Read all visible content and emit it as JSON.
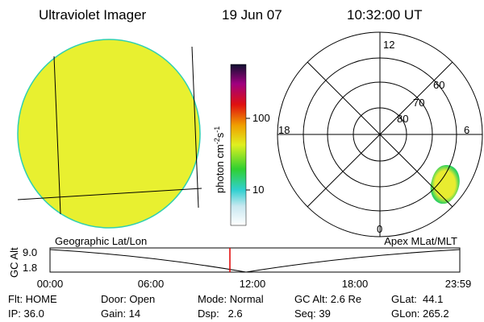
{
  "header": {
    "title": "Ultraviolet Imager",
    "date": "19 Jun 07",
    "time": "10:32:00 UT"
  },
  "colorbar": {
    "label_base": "photon cm",
    "label_exp1": "-2",
    "label_mid": "s",
    "label_exp2": "-1",
    "ticks": [
      "100",
      "10"
    ]
  },
  "polar": {
    "mlt": {
      "top": "12",
      "left": "18",
      "right": "6",
      "bottom": "0"
    },
    "lat": [
      "60",
      "70",
      "80"
    ]
  },
  "orbit": {
    "y_label": "GC Alt",
    "y_ticks": [
      "9.0",
      "1.8"
    ],
    "left_label": "Geographic Lat/Lon",
    "right_label": "Apex MLat/MLT",
    "x_ticks": [
      "00:00",
      "06:00",
      "12:00",
      "18:00",
      "23:59"
    ]
  },
  "status": {
    "rows": [
      [
        "Flt: HOME",
        "Door: Open",
        "Mode: Normal",
        "GC Alt: 2.6 Re",
        "GLat:  44.1"
      ],
      [
        "IP: 36.0",
        "Gain: 14",
        "Dsp:   2.6",
        "Seq: 39",
        "GLon: 265.2"
      ]
    ]
  }
}
